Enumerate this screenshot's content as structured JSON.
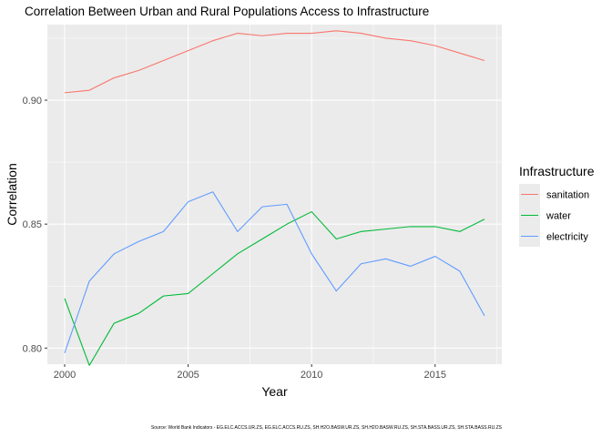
{
  "chart_data": {
    "type": "line",
    "title": "Correlation Between Urban and Rural Populations Access to Infrastructure",
    "xlabel": "Year",
    "ylabel": "Correlation",
    "xlim": [
      1999.3,
      2017.7
    ],
    "ylim": [
      0.7935,
      0.9305
    ],
    "x_ticks": [
      2000,
      2005,
      2010,
      2015
    ],
    "y_ticks": [
      0.8,
      0.85,
      0.9
    ],
    "y_tick_labels": [
      "0.80",
      "0.85",
      "0.90"
    ],
    "grid": true,
    "legend": {
      "title": "Infrastructure",
      "position": "right"
    },
    "caption": "Source: World Bank Indicators - EG.ELC.ACCS.UR.ZS, EG.ELC.ACCS.RU.ZS, SH.H2O.BASW.UR.ZS, SH.H2O.BASW.RU.ZS, SH.STA.BASS.UR.ZS, SH.STA.BASS.RU.ZS",
    "x": [
      2000,
      2001,
      2002,
      2003,
      2004,
      2005,
      2006,
      2007,
      2008,
      2009,
      2010,
      2011,
      2012,
      2013,
      2014,
      2015,
      2016,
      2017
    ],
    "series": [
      {
        "name": "sanitation",
        "color": "#F8766D",
        "values": [
          0.903,
          0.904,
          0.909,
          0.912,
          0.916,
          0.92,
          0.924,
          0.927,
          0.926,
          0.927,
          0.927,
          0.928,
          0.927,
          0.925,
          0.924,
          0.922,
          0.919,
          0.916
        ]
      },
      {
        "name": "water",
        "color": "#00BA38",
        "values": [
          0.82,
          0.793,
          0.81,
          0.814,
          0.821,
          0.822,
          0.83,
          0.838,
          0.844,
          0.85,
          0.855,
          0.844,
          0.847,
          0.848,
          0.849,
          0.849,
          0.847,
          0.852
        ]
      },
      {
        "name": "electricity",
        "color": "#619CFF",
        "values": [
          0.798,
          0.827,
          0.838,
          0.843,
          0.847,
          0.859,
          0.863,
          0.847,
          0.857,
          0.858,
          0.838,
          0.823,
          0.834,
          0.836,
          0.833,
          0.837,
          0.831,
          0.813
        ]
      }
    ]
  }
}
